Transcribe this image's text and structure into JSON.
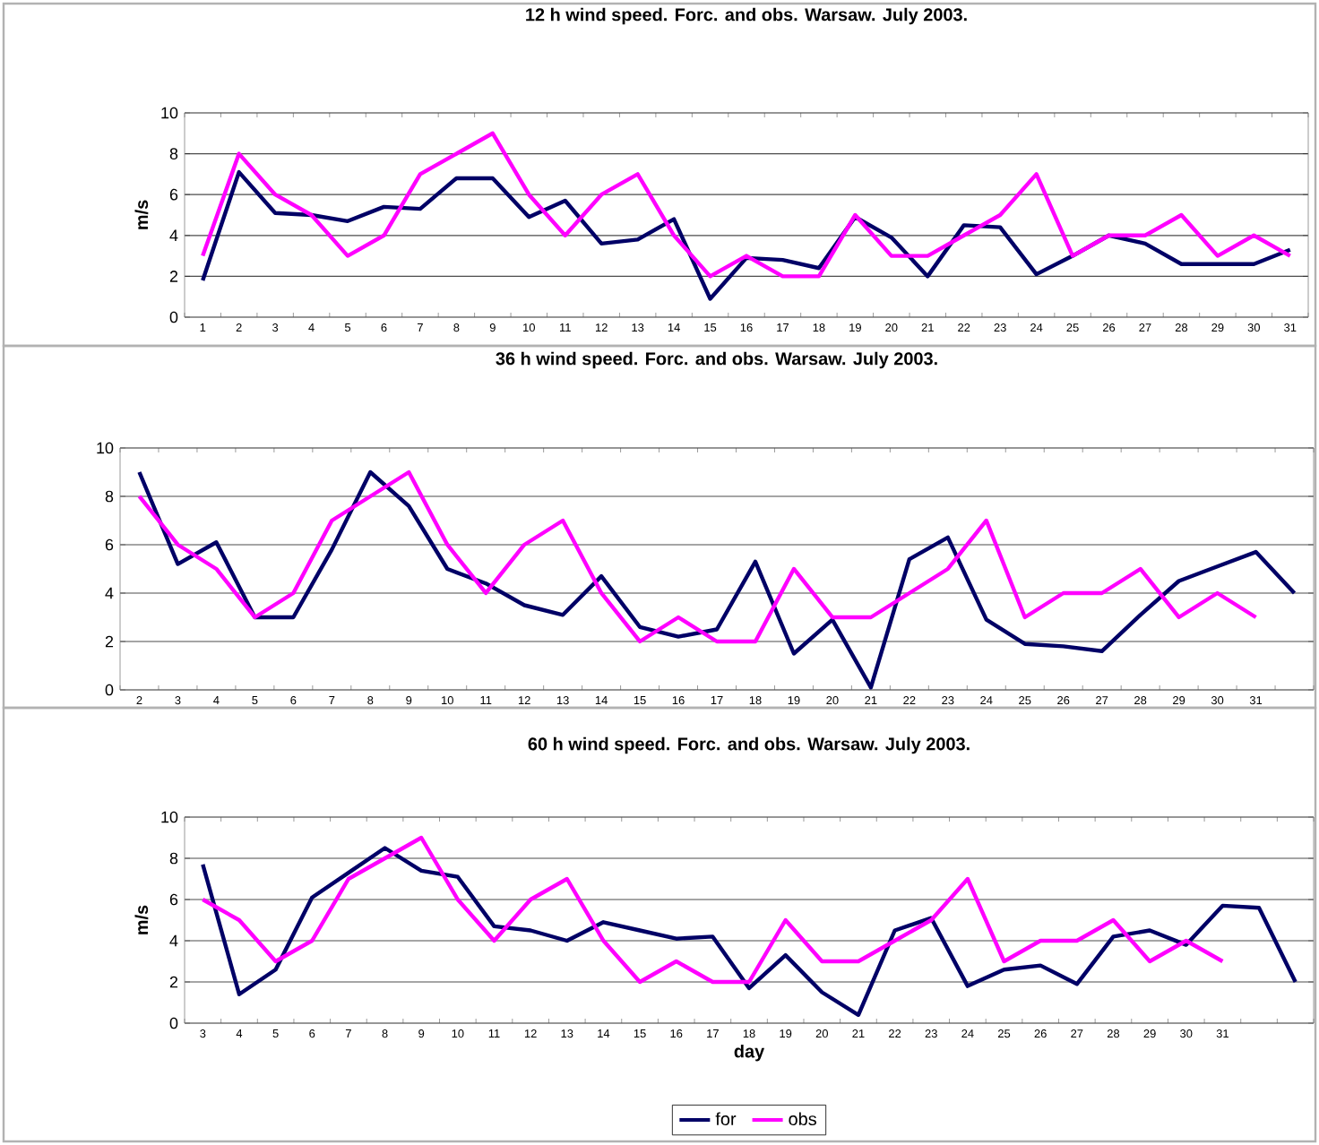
{
  "chart_data": [
    {
      "type": "line",
      "title": "12 h wind speed. Forc. and obs. Warsaw. July 2003.",
      "ylabel": "m/s",
      "categories": [
        "1",
        "2",
        "3",
        "4",
        "5",
        "6",
        "7",
        "8",
        "9",
        "10",
        "11",
        "12",
        "13",
        "14",
        "15",
        "16",
        "17",
        "18",
        "19",
        "20",
        "21",
        "22",
        "23",
        "24",
        "25",
        "26",
        "27",
        "28",
        "29",
        "30",
        "31"
      ],
      "series": [
        {
          "color": "#000066",
          "values": [
            1.8,
            7.1,
            5.1,
            5.0,
            4.7,
            5.4,
            5.3,
            6.8,
            6.8,
            4.9,
            5.7,
            3.6,
            3.8,
            4.8,
            0.9,
            2.9,
            2.8,
            2.4,
            4.9,
            3.9,
            2.0,
            4.5,
            4.4,
            2.1,
            3.0,
            4.0,
            3.6,
            2.6,
            2.6,
            2.6,
            3.3
          ]
        },
        {
          "color": "#ff00ff",
          "values": [
            3,
            8,
            6,
            5,
            3,
            4,
            7,
            8,
            9,
            6,
            4,
            6,
            7,
            4,
            2,
            3,
            2,
            2,
            5,
            3,
            3,
            4,
            5,
            7,
            3,
            4,
            4,
            5,
            3,
            4,
            3
          ]
        }
      ],
      "ylim": [
        0,
        10
      ],
      "yticks": [
        0,
        2,
        4,
        6,
        8,
        10
      ],
      "grid": "y"
    },
    {
      "type": "line",
      "title": "36 h wind speed. Forc. and obs. Warsaw. July 2003.",
      "categories": [
        "2",
        "3",
        "4",
        "5",
        "6",
        "7",
        "8",
        "9",
        "10",
        "11",
        "12",
        "13",
        "14",
        "15",
        "16",
        "17",
        "18",
        "19",
        "20",
        "21",
        "22",
        "23",
        "24",
        "25",
        "26",
        "27",
        "28",
        "29",
        "30",
        "31",
        null
      ],
      "series": [
        {
          "color": "#000066",
          "values": [
            9.0,
            5.2,
            6.1,
            3.0,
            3.0,
            5.8,
            9.0,
            7.6,
            5.0,
            4.4,
            3.5,
            3.1,
            4.7,
            2.6,
            2.2,
            2.5,
            5.3,
            1.5,
            2.9,
            0.1,
            5.4,
            6.3,
            2.9,
            1.9,
            1.8,
            1.6,
            3.1,
            4.5,
            5.1,
            5.7,
            4.0
          ]
        },
        {
          "color": "#ff00ff",
          "values": [
            8,
            6,
            5,
            3,
            4,
            7,
            8,
            9,
            6,
            4,
            6,
            7,
            4,
            2,
            3,
            2,
            2,
            5,
            3,
            3,
            4,
            5,
            7,
            3,
            4,
            4,
            5,
            3,
            4,
            3,
            null
          ]
        }
      ],
      "ylim": [
        0,
        10
      ],
      "yticks": [
        0,
        2,
        4,
        6,
        8,
        10
      ],
      "grid": "y"
    },
    {
      "type": "line",
      "title": "60 h wind speed. Forc. and obs. Warsaw. July 2003.",
      "ylabel": "m/s",
      "xlabel": "day",
      "categories": [
        "3",
        "4",
        "5",
        "6",
        "7",
        "8",
        "9",
        "10",
        "11",
        "12",
        "13",
        "14",
        "15",
        "16",
        "17",
        "18",
        "19",
        "20",
        "21",
        "22",
        "23",
        "24",
        "25",
        "26",
        "27",
        "28",
        "29",
        "30",
        "31",
        null,
        null
      ],
      "series": [
        {
          "name": "for",
          "color": "#000066",
          "values": [
            7.7,
            1.4,
            2.6,
            6.1,
            7.3,
            8.5,
            7.4,
            7.1,
            4.7,
            4.5,
            4.0,
            4.9,
            4.5,
            4.1,
            4.2,
            1.7,
            3.3,
            1.5,
            0.4,
            4.5,
            5.1,
            1.8,
            2.6,
            2.8,
            1.9,
            4.2,
            4.5,
            3.8,
            5.7,
            5.6,
            2.0
          ]
        },
        {
          "name": "obs",
          "color": "#ff00ff",
          "values": [
            6,
            5,
            3,
            4,
            7,
            8,
            9,
            6,
            4,
            6,
            7,
            4,
            2,
            3,
            2,
            2,
            5,
            3,
            3,
            4,
            5,
            7,
            3,
            4,
            4,
            5,
            3,
            4,
            3,
            null,
            null
          ]
        }
      ],
      "ylim": [
        0,
        10
      ],
      "yticks": [
        0,
        2,
        4,
        6,
        8,
        10
      ],
      "grid": "y",
      "legend": "bottom"
    }
  ]
}
